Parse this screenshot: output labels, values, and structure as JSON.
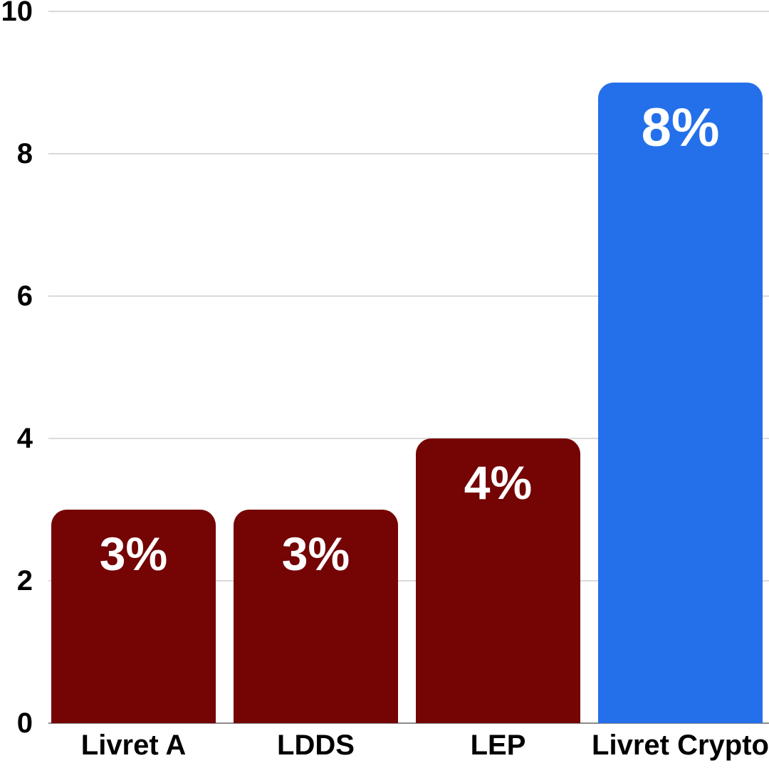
{
  "chart_data": {
    "type": "bar",
    "title": "",
    "xlabel": "",
    "ylabel": "",
    "categories": [
      "Livret A",
      "LDDS",
      "LEP",
      "Livret Crypto"
    ],
    "values": [
      3,
      3,
      4,
      8
    ],
    "bar_labels": [
      "3%",
      "3%",
      "4%",
      "8%"
    ],
    "drawn_bar_heights_axis_units": [
      3,
      3,
      4,
      9
    ],
    "yticks": [
      "0",
      "2",
      "4",
      "6",
      "8",
      "10"
    ],
    "ytick_values": [
      0,
      2,
      4,
      6,
      8,
      10
    ],
    "ylim": [
      0,
      10
    ],
    "grid": "horizontal-on",
    "legend": "none",
    "highlight_index": 3,
    "colors": {
      "default_bar": "#750404",
      "highlight_bar": "#2470EB",
      "bar_label_text": "#FFFFFF",
      "axis_text": "#000000",
      "gridline": "#DADADA",
      "baseline": "#8C8C8C",
      "background": "#FFFFFF"
    }
  },
  "bars": [
    {
      "category": "Livret A",
      "label": "3%",
      "height": 3,
      "highlight": false
    },
    {
      "category": "LDDS",
      "label": "3%",
      "height": 3,
      "highlight": false
    },
    {
      "category": "LEP",
      "label": "4%",
      "height": 4,
      "highlight": false
    },
    {
      "category": "Livret Crypto",
      "label": "8%",
      "height": 9,
      "highlight": true
    }
  ]
}
